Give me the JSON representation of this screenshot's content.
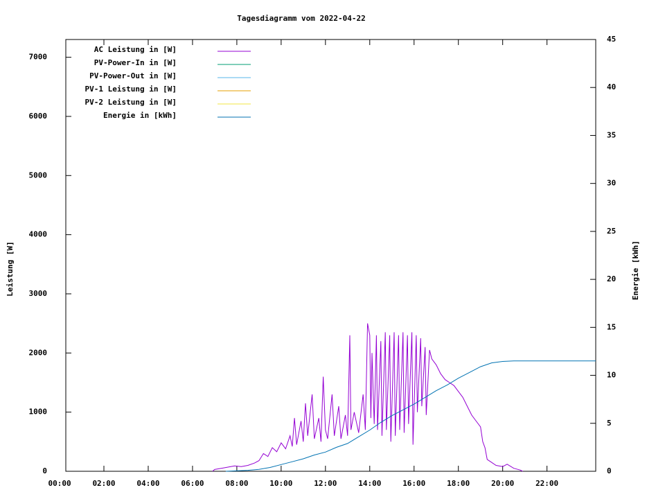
{
  "chart_data": {
    "type": "line",
    "title": "Tagesdiagramm vom 2022-04-22",
    "y_label": "Leistung [W]",
    "y2_label": "Energie [kWh]",
    "xlim": [
      0.28,
      24.2
    ],
    "xticks": [
      {
        "value": 0,
        "label": "00:00"
      },
      {
        "value": 2,
        "label": "02:00"
      },
      {
        "value": 4,
        "label": "04:00"
      },
      {
        "value": 6,
        "label": "06:00"
      },
      {
        "value": 8,
        "label": "08:00"
      },
      {
        "value": 10,
        "label": "10:00"
      },
      {
        "value": 12,
        "label": "12:00"
      },
      {
        "value": 14,
        "label": "14:00"
      },
      {
        "value": 16,
        "label": "16:00"
      },
      {
        "value": 18,
        "label": "18:00"
      },
      {
        "value": 20,
        "label": "20:00"
      },
      {
        "value": 22,
        "label": "22:00"
      }
    ],
    "ylim": [
      0,
      7300
    ],
    "yticks": [
      0,
      1000,
      2000,
      3000,
      4000,
      5000,
      6000,
      7000
    ],
    "y2lim": [
      0,
      45
    ],
    "y2ticks": [
      0,
      5,
      10,
      15,
      20,
      25,
      30,
      35,
      40,
      45
    ],
    "legend": "top-left",
    "grid": false,
    "series": [
      {
        "name": "AC Leistung in [W]",
        "color": "#9400d3",
        "x": [
          6.9,
          7.0,
          7.3,
          7.6,
          7.9,
          8.2,
          8.5,
          8.8,
          9.0,
          9.2,
          9.4,
          9.6,
          9.8,
          10.0,
          10.2,
          10.4,
          10.5,
          10.6,
          10.7,
          10.9,
          11.0,
          11.1,
          11.2,
          11.4,
          11.5,
          11.7,
          11.8,
          11.9,
          12.0,
          12.1,
          12.3,
          12.4,
          12.6,
          12.7,
          12.9,
          13.0,
          13.1,
          13.15,
          13.3,
          13.5,
          13.7,
          13.8,
          13.9,
          14.0,
          14.05,
          14.1,
          14.2,
          14.3,
          14.35,
          14.5,
          14.55,
          14.7,
          14.75,
          14.9,
          14.95,
          15.1,
          15.15,
          15.3,
          15.35,
          15.5,
          15.55,
          15.7,
          15.75,
          15.9,
          15.95,
          16.1,
          16.15,
          16.3,
          16.35,
          16.5,
          16.55,
          16.7,
          16.8,
          17.0,
          17.2,
          17.4,
          17.6,
          17.8,
          18.0,
          18.2,
          18.4,
          18.6,
          18.8,
          19.0,
          19.1,
          19.2,
          19.3,
          19.5,
          19.7,
          20.0,
          20.2,
          20.5,
          20.8,
          20.9
        ],
        "values": [
          0,
          30,
          50,
          70,
          90,
          80,
          100,
          140,
          180,
          300,
          250,
          400,
          330,
          480,
          380,
          600,
          420,
          900,
          450,
          850,
          500,
          1150,
          600,
          1300,
          550,
          900,
          500,
          1600,
          700,
          550,
          1300,
          600,
          1100,
          550,
          950,
          600,
          2300,
          700,
          1000,
          650,
          1300,
          700,
          2500,
          2300,
          900,
          2000,
          800,
          2300,
          700,
          2200,
          600,
          2350,
          700,
          2300,
          500,
          2350,
          600,
          2300,
          700,
          2350,
          650,
          2300,
          800,
          2350,
          450,
          2300,
          1000,
          2250,
          1100,
          2100,
          950,
          2050,
          1900,
          1800,
          1650,
          1550,
          1500,
          1450,
          1350,
          1250,
          1100,
          950,
          850,
          750,
          500,
          400,
          200,
          150,
          100,
          80,
          120,
          50,
          20,
          0
        ]
      },
      {
        "name": "PV-Power-In in [W]",
        "color": "#009e73",
        "x": [],
        "values": []
      },
      {
        "name": "PV-Power-Out in [W]",
        "color": "#56b4e9",
        "x": [],
        "values": []
      },
      {
        "name": "PV-1 Leistung in [W]",
        "color": "#e69f00",
        "x": [],
        "values": []
      },
      {
        "name": "PV-2 Leistung in [W]",
        "color": "#f0e442",
        "x": [],
        "values": []
      },
      {
        "name": "Energie in [kWh]",
        "color": "#0072b2",
        "axis": "y2",
        "x": [
          7.5,
          8.5,
          9,
          9.5,
          10,
          10.5,
          11,
          11.5,
          12,
          12.5,
          13,
          13.5,
          14,
          14.5,
          15,
          15.5,
          16,
          16.5,
          17,
          17.5,
          18,
          18.5,
          19,
          19.5,
          20,
          20.5,
          24.2
        ],
        "values": [
          0,
          0.1,
          0.2,
          0.4,
          0.7,
          1.0,
          1.3,
          1.7,
          2.0,
          2.5,
          2.9,
          3.6,
          4.3,
          5.1,
          5.8,
          6.4,
          7.0,
          7.7,
          8.4,
          9.0,
          9.7,
          10.3,
          10.9,
          11.3,
          11.45,
          11.5,
          11.5
        ]
      }
    ]
  }
}
